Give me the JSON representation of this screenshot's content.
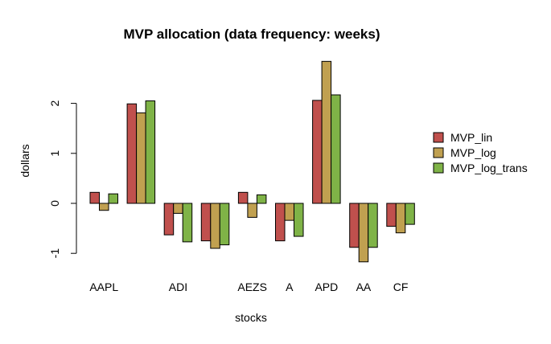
{
  "chart_data": {
    "type": "bar",
    "title": "MVP allocation (data frequency: weeks)",
    "xlabel": "stocks",
    "ylabel": "dollars",
    "ylim": [
      -1.25,
      3.0
    ],
    "yticks": [
      -1,
      0,
      1,
      2
    ],
    "ytick_labels": [
      "-1",
      "0",
      "1",
      "2"
    ],
    "grid": false,
    "legend_position": "right",
    "categories": [
      "AAPL",
      "",
      "ADI",
      "",
      "AEZS",
      "A",
      "APD",
      "AA",
      "CF"
    ],
    "series": [
      {
        "name": "MVP_lin",
        "color": "#C0504D",
        "values": [
          0.22,
          1.99,
          -0.63,
          -0.75,
          0.22,
          -0.75,
          2.06,
          -0.88,
          -0.46
        ]
      },
      {
        "name": "MVP_log",
        "color": "#C0A050",
        "values": [
          -0.14,
          1.81,
          -0.2,
          -0.9,
          -0.28,
          -0.34,
          2.84,
          -1.17,
          -0.59
        ]
      },
      {
        "name": "MVP_log_trans",
        "color": "#7FB347",
        "values": [
          0.19,
          2.05,
          -0.77,
          -0.83,
          0.17,
          -0.66,
          2.17,
          -0.88,
          -0.42
        ]
      }
    ]
  }
}
